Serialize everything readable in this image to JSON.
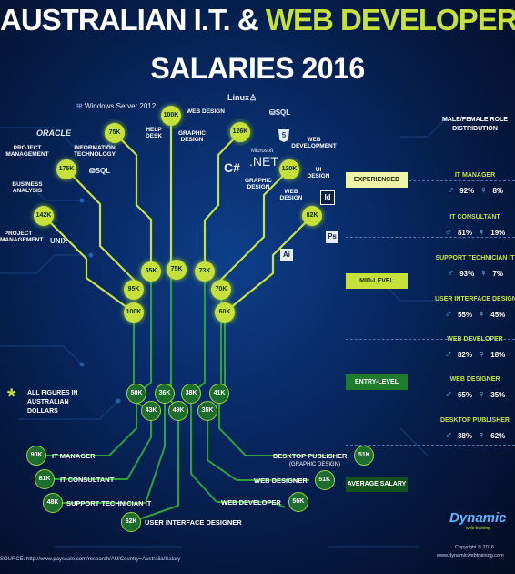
{
  "title": {
    "line1a": "AUSTRALIAN I.T.",
    "line1b": "&",
    "line1c": "WEB DEVELOPER",
    "line2": "SALARIES 2016"
  },
  "tree_labels": {
    "web_design": "WEB DESIGN",
    "graphic_design": "GRAPHIC DESIGN",
    "help_desk": "HELP DESK",
    "project_management": "PROJECT MANAGEMENT",
    "information_technology": "INFORMATION TECHNOLOGY",
    "business_analysis": "BUSINESS ANALYSIS",
    "project_management_2": "PROJECT MANAGEMENT",
    "web_development": "WEB DEVELOPMENT",
    "ui_design": "UI DESIGN",
    "graphic_design_2": "GRAPHIC DESIGN",
    "web_design_2": "WEB DESIGN"
  },
  "logos": {
    "windows_server": "Windows Server 2012",
    "oracle": "ORACLE",
    "sql": "SQL",
    "sql2": "SQL",
    "unix": "UNIX",
    "csharp": "C#",
    "microsoft": "Microsoft",
    "dotnet": ".NET",
    "linux": "Linux",
    "html5": "5",
    "indesign": "Id",
    "photoshop": "Ps",
    "illustrator": "Ai"
  },
  "experienced_nodes": [
    "100K",
    "75K",
    "126K",
    "175K",
    "120K",
    "142K",
    "82K"
  ],
  "mid_nodes": [
    "65K",
    "75K",
    "73K",
    "95K",
    "70K",
    "100K",
    "60K"
  ],
  "entry_nodes": [
    "50K",
    "36K",
    "38K",
    "41K",
    "43K",
    "49K",
    "35K"
  ],
  "bands": {
    "experienced": "EXPERIENCED",
    "mid": "MID-LEVEL",
    "entry": "ENTRY-LEVEL",
    "average": "AVERAGE SALARY"
  },
  "note": {
    "star": "*",
    "text": "ALL FIGURES IN AUSTRALIAN DOLLARS"
  },
  "average_salaries": [
    {
      "value": "90K",
      "role": "IT MANAGER"
    },
    {
      "value": "81K",
      "role": "IT CONSULTANT"
    },
    {
      "value": "48K",
      "role": "SUPPORT TECHNICIAN IT"
    },
    {
      "value": "62K",
      "role": "USER INTERFACE DESIGNER"
    },
    {
      "value": "56K",
      "role": "WEB DEVELOPER"
    },
    {
      "value": "51K",
      "role": "WEB DESIGNER"
    },
    {
      "value": "51K",
      "role": "DESKTOP PUBLISHER",
      "sub": "(GRAPHIC DESIGN)"
    }
  ],
  "gender": {
    "header": "MALE/FEMALE ROLE DISTRIBUTION",
    "roles": [
      {
        "title": "IT MANAGER",
        "male": "92%",
        "female": "8%"
      },
      {
        "title": "IT CONSULTANT",
        "male": "81%",
        "female": "19%"
      },
      {
        "title": "SUPPORT TECHNICIAN IT",
        "male": "93%",
        "female": "7%"
      },
      {
        "title": "USER INTERFACE DESIGNER",
        "male": "55%",
        "female": "45%"
      },
      {
        "title": "WEB DEVELOPER",
        "male": "82%",
        "female": "18%"
      },
      {
        "title": "WEB DESIGNER",
        "male": "65%",
        "female": "35%"
      },
      {
        "title": "DESKTOP PUBLISHER",
        "male": "38%",
        "female": "62%"
      }
    ]
  },
  "brand": {
    "name": "Dynamic",
    "sub": "web training"
  },
  "footer": {
    "source": "SOURCE: http://www.payscale.com/research/AU/Country=Australia/Salary",
    "copyright": "Copyright © 2016",
    "site": "www.dynamicwebtraining.com"
  },
  "colors": {
    "accent": "#c6e23a",
    "dark_green": "#1e7c2c",
    "background": "#051a44"
  }
}
